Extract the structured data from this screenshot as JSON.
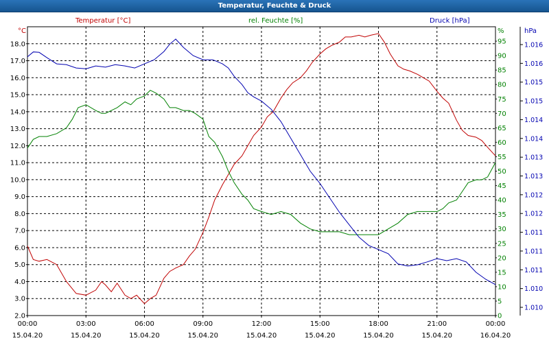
{
  "window": {
    "title": "Temperatur, Feuchte & Druck"
  },
  "colors": {
    "temperature": "#c00000",
    "humidity": "#008000",
    "pressure": "#0000b0",
    "grid": "#000000"
  },
  "chart_data": {
    "type": "line",
    "title": "Temperatur, Feuchte & Druck",
    "x_hours": [
      0,
      24
    ],
    "x_ticks": [
      {
        "hour": 0,
        "time": "00:00",
        "date": "15.04.20"
      },
      {
        "hour": 3,
        "time": "03:00",
        "date": "15.04.20"
      },
      {
        "hour": 6,
        "time": "06:00",
        "date": "15.04.20"
      },
      {
        "hour": 9,
        "time": "09:00",
        "date": "15.04.20"
      },
      {
        "hour": 12,
        "time": "12:00",
        "date": "15.04.20"
      },
      {
        "hour": 15,
        "time": "15:00",
        "date": "15.04.20"
      },
      {
        "hour": 18,
        "time": "18:00",
        "date": "15.04.20"
      },
      {
        "hour": 21,
        "time": "21:00",
        "date": "15.04.20"
      },
      {
        "hour": 24,
        "time": "00:00",
        "date": "16.04.20"
      }
    ],
    "axes": {
      "temperature": {
        "label": "Temperatur [°C]",
        "unit": "°C",
        "range": [
          2.0,
          19.0
        ],
        "ticks": [
          "2.0",
          "3.0",
          "4.0",
          "5.0",
          "6.0",
          "7.0",
          "8.0",
          "9.0",
          "10.0",
          "11.0",
          "12.0",
          "13.0",
          "14.0",
          "15.0",
          "16.0",
          "17.0",
          "18.0"
        ]
      },
      "humidity": {
        "label": "rel. Feuchte [%]",
        "unit": "%",
        "range": [
          0,
          100
        ],
        "ticks": [
          "0",
          "5",
          "10",
          "15",
          "20",
          "25",
          "30",
          "35",
          "40",
          "45",
          "50",
          "55",
          "60",
          "65",
          "70",
          "75",
          "80",
          "85",
          "90",
          "95"
        ]
      },
      "pressure": {
        "label": "Druck [hPa]",
        "unit": "hPa",
        "range": [
          1009.5,
          1016.5
        ],
        "ticks": [
          "1.010",
          "1.010",
          "1.011",
          "1.011",
          "1.011",
          "1.012",
          "1.012",
          "1.013",
          "1.013",
          "1.014",
          "1.014",
          "1.015",
          "1.015",
          "1.016",
          "1.016"
        ]
      }
    },
    "series": [
      {
        "name": "Temperatur",
        "axis": "temperature",
        "x": [
          0,
          0.3,
          0.6,
          1,
          1.5,
          2,
          2.5,
          3,
          3.5,
          3.8,
          4,
          4.3,
          4.6,
          5,
          5.3,
          5.6,
          6,
          6.3,
          6.6,
          7,
          7.3,
          7.6,
          8,
          8.3,
          8.6,
          9,
          9.3,
          9.6,
          10,
          10.3,
          10.6,
          11,
          11.3,
          11.6,
          12,
          12.3,
          12.6,
          13,
          13.3,
          13.6,
          14,
          14.3,
          14.6,
          15,
          15.3,
          15.6,
          16,
          16.3,
          16.6,
          17,
          17.3,
          17.6,
          18,
          18.3,
          18.6,
          19,
          19.3,
          19.6,
          20,
          20.3,
          20.6,
          21,
          21.3,
          21.6,
          22,
          22.3,
          22.6,
          23,
          23.3,
          23.6,
          24
        ],
        "values": [
          6.1,
          5.3,
          5.2,
          5.3,
          5.0,
          4.0,
          3.3,
          3.2,
          3.5,
          4.0,
          3.8,
          3.4,
          3.9,
          3.2,
          3.0,
          3.2,
          2.7,
          3.0,
          3.2,
          4.2,
          4.6,
          4.8,
          5.0,
          5.5,
          5.9,
          6.9,
          7.8,
          8.8,
          9.7,
          10.3,
          10.9,
          11.4,
          12.0,
          12.6,
          13.1,
          13.7,
          14.0,
          14.8,
          15.3,
          15.7,
          16.0,
          16.4,
          16.9,
          17.4,
          17.7,
          17.9,
          18.1,
          18.4,
          18.4,
          18.5,
          18.4,
          18.5,
          18.6,
          18.1,
          17.4,
          16.7,
          16.5,
          16.4,
          16.2,
          16.0,
          15.8,
          15.2,
          14.8,
          14.5,
          13.5,
          12.9,
          12.6,
          12.5,
          12.3,
          11.9,
          11.4
        ]
      },
      {
        "name": "rel. Feuchte",
        "axis": "humidity",
        "x": [
          0,
          0.3,
          0.6,
          1,
          1.5,
          2,
          2.3,
          2.6,
          3,
          3.5,
          3.8,
          4,
          4.3,
          4.6,
          5,
          5.3,
          5.6,
          6,
          6.3,
          6.6,
          7,
          7.3,
          7.6,
          8,
          8.3,
          8.6,
          9,
          9.3,
          9.6,
          10,
          10.3,
          10.6,
          11,
          11.3,
          11.6,
          12,
          12.5,
          13,
          13.5,
          14,
          14.5,
          15,
          15.5,
          16,
          16.5,
          17,
          17.5,
          18,
          18.5,
          19,
          19.5,
          20,
          20.5,
          21,
          21.3,
          21.6,
          22,
          22.3,
          22.6,
          23,
          23.3,
          23.6,
          24
        ],
        "values": [
          58,
          61,
          62,
          62,
          63,
          65,
          68,
          72,
          73,
          71,
          70,
          70,
          71,
          72,
          74,
          73,
          75,
          76,
          78,
          77,
          75,
          72,
          72,
          71,
          71,
          70,
          68,
          62,
          60,
          55,
          50,
          46,
          42,
          40,
          37,
          36,
          35,
          36,
          35,
          32,
          30,
          29,
          29,
          29,
          28,
          28,
          28,
          28,
          30,
          32,
          35,
          36,
          36,
          36,
          37,
          39,
          40,
          43,
          46,
          47,
          47,
          48,
          53
        ]
      },
      {
        "name": "Druck",
        "axis": "pressure",
        "x": [
          0,
          0.3,
          0.6,
          1,
          1.5,
          2,
          2.5,
          3,
          3.5,
          4,
          4.5,
          5,
          5.5,
          6,
          6.5,
          7,
          7.3,
          7.6,
          8,
          8.5,
          9,
          9.5,
          10,
          10.3,
          10.6,
          11,
          11.3,
          11.6,
          12,
          12.5,
          13,
          13.5,
          14,
          14.5,
          15,
          15.5,
          16,
          16.5,
          17,
          17.5,
          18,
          18.5,
          19,
          19.5,
          20,
          20.5,
          21,
          21.5,
          22,
          22.5,
          23,
          23.5,
          24
        ],
        "values": [
          1015.77,
          1015.89,
          1015.88,
          1015.75,
          1015.6,
          1015.58,
          1015.5,
          1015.48,
          1015.55,
          1015.52,
          1015.58,
          1015.55,
          1015.5,
          1015.6,
          1015.7,
          1015.9,
          1016.08,
          1016.2,
          1016.0,
          1015.8,
          1015.7,
          1015.7,
          1015.6,
          1015.5,
          1015.3,
          1015.1,
          1014.9,
          1014.8,
          1014.7,
          1014.5,
          1014.2,
          1013.8,
          1013.4,
          1013.0,
          1012.7,
          1012.35,
          1012.0,
          1011.7,
          1011.4,
          1011.2,
          1011.1,
          1011.0,
          1010.75,
          1010.7,
          1010.73,
          1010.8,
          1010.88,
          1010.83,
          1010.88,
          1010.8,
          1010.55,
          1010.38,
          1010.25
        ]
      }
    ]
  }
}
